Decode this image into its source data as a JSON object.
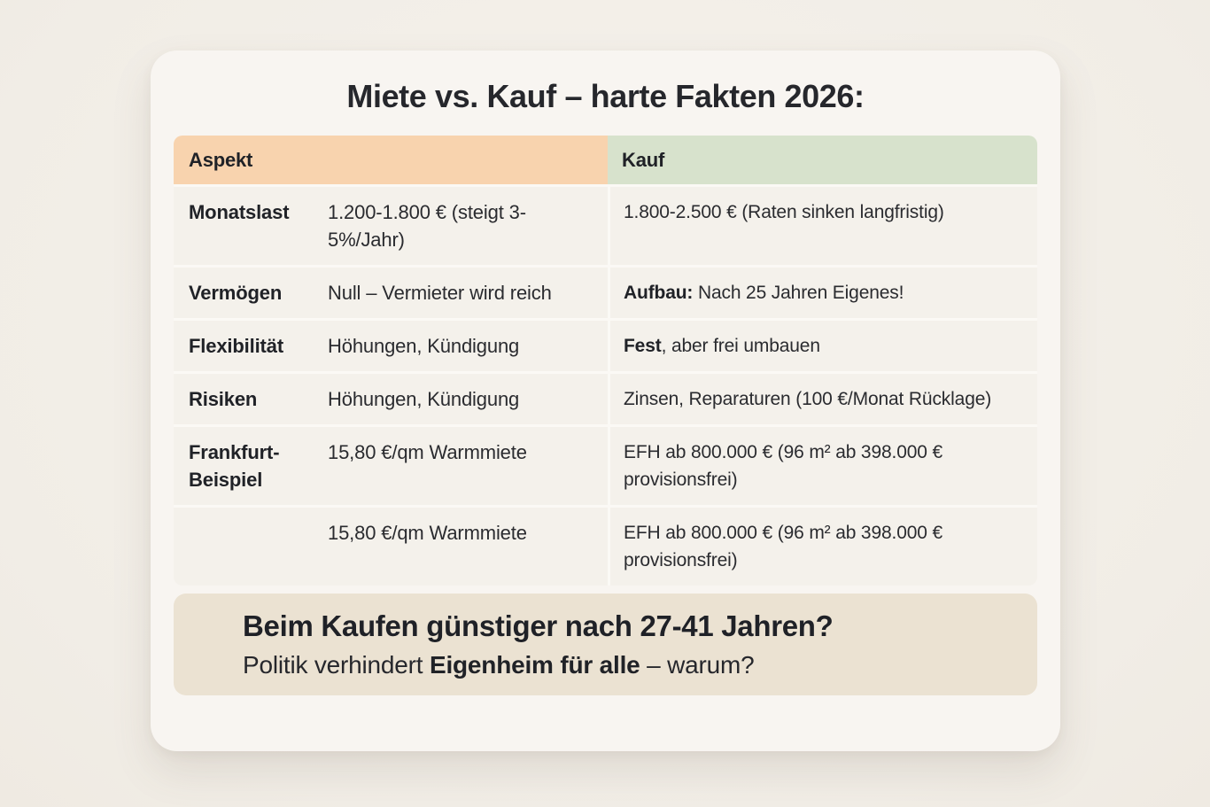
{
  "title": "Miete vs. Kauf – harte Fakten 2026:",
  "table": {
    "headers": [
      {
        "label": "Aspekt"
      },
      {
        "label": "Kauf"
      }
    ],
    "rows": [
      {
        "aspect": "Monatslast",
        "miete": "1.200-1.800 € (steigt 3-5%/Jahr)",
        "kauf_bold": "",
        "kauf_rest": "1.800-2.500 € (Raten sinken langfristig)"
      },
      {
        "aspect": "Vermögen",
        "miete": "Null – Vermieter wird reich",
        "kauf_bold": "Aufbau:",
        "kauf_rest": " Nach 25 Jahren Eigenes!"
      },
      {
        "aspect": "Flexibilität",
        "miete": "Höhungen, Kündigung",
        "kauf_bold": "Fest",
        "kauf_rest": ", aber frei umbauen"
      },
      {
        "aspect": "Risiken",
        "miete": "Höhungen, Kündigung",
        "kauf_bold": "",
        "kauf_rest": "Zinsen, Reparaturen (100 €/Monat Rücklage)"
      },
      {
        "aspect": "Frankfurt-Beispiel",
        "miete": "15,80 €/qm Warmmiete",
        "kauf_bold": "",
        "kauf_rest": "EFH ab 800.000 € (96 m² ab 398.000 € provisionsfrei)"
      },
      {
        "aspect": "",
        "miete": "15,80 €/qm Warmmiete",
        "kauf_bold": "",
        "kauf_rest": "EFH ab 800.000 € (96 m² ab 398.000 € provisionsfrei)"
      }
    ]
  },
  "callout": {
    "line1": "Beim Kaufen günstiger nach 27-41 Jahren?",
    "line2_prefix": "Politik verhindert ",
    "line2_bold": "Eigenheim für alle",
    "line2_suffix": " – warum?"
  },
  "colors": {
    "page_background": "#f2eee8",
    "card_background": "#f8f5f1",
    "header_aspekt": "#f8d3ae",
    "header_kauf": "#d7e2cc",
    "row_background": "#f4f1eb",
    "separator": "#fbf9f5",
    "callout_background": "#ebe2d2",
    "text": "#26272b"
  },
  "chart_data": {
    "type": "table",
    "title": "Miete vs. Kauf – harte Fakten 2026:",
    "columns": [
      "Aspekt",
      "",
      "Kauf"
    ],
    "rows": [
      [
        "Monatslast",
        "1.200-1.800 € (steigt 3-5%/Jahr)",
        "1.800-2.500 € (Raten sinken langfristig)"
      ],
      [
        "Vermögen",
        "Null – Vermieter wird reich",
        "Aufbau: Nach 25 Jahren Eigenes!"
      ],
      [
        "Flexibilität",
        "Höhungen, Kündigung",
        "Fest, aber frei umbauen"
      ],
      [
        "Risiken",
        "Höhungen, Kündigung",
        "Zinsen, Reparaturen (100 €/Monat Rücklage)"
      ],
      [
        "Frankfurt-Beispiel",
        "15,80 €/qm Warmmiete",
        "EFH ab 800.000 € (96 m² ab 398.000 € provisionsfrei)"
      ],
      [
        "",
        "15,80 €/qm Warmmiete",
        "EFH ab 800.000 € (96 m² ab 398.000 € provisionsfrei)"
      ]
    ],
    "annotations": [
      "Beim Kaufen günstiger nach 27-41 Jahren?",
      "Politik verhindert Eigenheim für alle – warum?"
    ],
    "layout": {
      "header_colors": [
        "#f8d3ae",
        "#d7e2cc"
      ],
      "grid": "horizontal-separators"
    }
  }
}
